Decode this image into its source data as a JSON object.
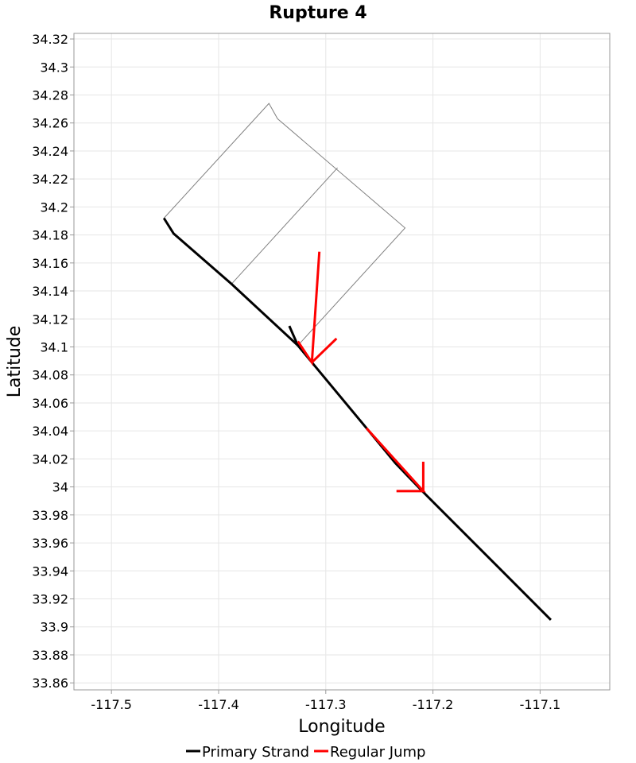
{
  "chart_data": {
    "type": "line",
    "title": "Rupture 4",
    "xlabel": "Longitude",
    "ylabel": "Latitude",
    "xlim": [
      -117.535,
      -117.035
    ],
    "ylim": [
      33.855,
      34.324
    ],
    "xticks": [
      -117.5,
      -117.4,
      -117.3,
      -117.2,
      -117.1
    ],
    "xtick_labels": [
      "-117.5",
      "-117.4",
      "-117.3",
      "-117.2",
      "-117.1"
    ],
    "yticks": [
      33.86,
      33.88,
      33.9,
      33.92,
      33.94,
      33.96,
      33.98,
      34,
      34.02,
      34.04,
      34.06,
      34.08,
      34.1,
      34.12,
      34.14,
      34.16,
      34.18,
      34.2,
      34.22,
      34.24,
      34.26,
      34.28,
      34.3,
      34.32
    ],
    "ytick_labels": [
      "33.86",
      "33.88",
      "33.9",
      "33.92",
      "33.94",
      "33.96",
      "33.98",
      "34",
      "34.02",
      "34.04",
      "34.06",
      "34.08",
      "34.1",
      "34.12",
      "34.14",
      "34.16",
      "34.18",
      "34.2",
      "34.22",
      "34.24",
      "34.26",
      "34.28",
      "34.3",
      "34.32"
    ],
    "grid": true,
    "legend_position": "bottom-center",
    "outlines": [
      {
        "points": [
          [
            -117.451,
            34.192
          ],
          [
            -117.353,
            34.274
          ],
          [
            -117.345,
            34.263
          ],
          [
            -117.226,
            34.185
          ],
          [
            -117.326,
            34.101
          ]
        ]
      },
      {
        "points": [
          [
            -117.388,
            34.145
          ],
          [
            -117.289,
            34.228
          ]
        ]
      }
    ],
    "series": [
      {
        "name": "Primary Strand",
        "color": "#000000",
        "segments": [
          [
            [
              -117.451,
              34.192
            ],
            [
              -117.442,
              34.181
            ],
            [
              -117.388,
              34.145
            ],
            [
              -117.326,
              34.101
            ],
            [
              -117.313,
              34.089
            ],
            [
              -117.262,
              34.042
            ],
            [
              -117.235,
              34.017
            ],
            [
              -117.21,
              33.997
            ],
            [
              -117.09,
              33.905
            ]
          ],
          [
            [
              -117.334,
              34.115
            ],
            [
              -117.326,
              34.101
            ]
          ]
        ]
      },
      {
        "name": "Regular Jump",
        "color": "#ff0000",
        "segments": [
          [
            [
              -117.306,
              34.168
            ],
            [
              -117.313,
              34.089
            ],
            [
              -117.326,
              34.104
            ]
          ],
          [
            [
              -117.313,
              34.089
            ],
            [
              -117.29,
              34.106
            ]
          ],
          [
            [
              -117.262,
              34.042
            ],
            [
              -117.209,
              33.997
            ],
            [
              -117.234,
              33.997
            ]
          ],
          [
            [
              -117.209,
              33.997
            ],
            [
              -117.209,
              34.018
            ]
          ]
        ]
      }
    ]
  }
}
